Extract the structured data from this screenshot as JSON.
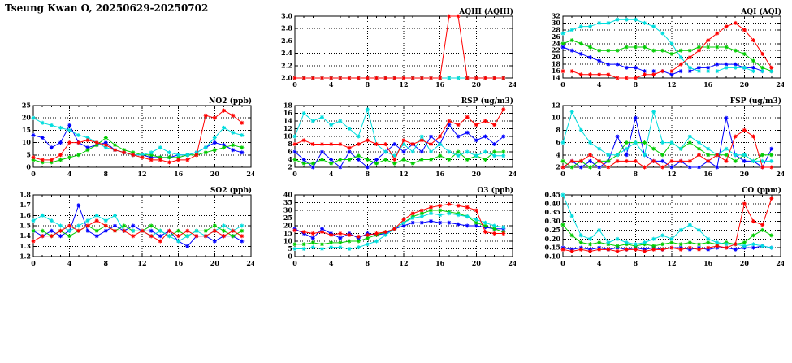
{
  "page_title": "Tseung Kwan O, 20250629-20250702",
  "series_colors": {
    "blue": "#0000ff",
    "green": "#00cc00",
    "cyan": "#00dddd",
    "red": "#ff0000"
  },
  "chart_data": [
    {
      "id": "aqhi",
      "type": "line",
      "title": "AQHI (AQHI)",
      "xlim": [
        0,
        24
      ],
      "xticks": [
        0,
        4,
        8,
        12,
        16,
        20,
        24
      ],
      "ylim": [
        2.0,
        3.0
      ],
      "yticks": [
        2.0,
        2.2,
        2.4,
        2.6,
        2.8,
        3.0
      ],
      "ydec": 1,
      "series": [
        {
          "name": "blue",
          "color": "#0000ff",
          "values": [
            2,
            2,
            2,
            2,
            2,
            2,
            2,
            2,
            2,
            2,
            2,
            2,
            2,
            2,
            2,
            2,
            2,
            2,
            2,
            2,
            2,
            2,
            2,
            2
          ]
        },
        {
          "name": "green",
          "color": "#00cc00",
          "values": [
            2,
            2,
            2,
            2,
            2,
            2,
            2,
            2,
            2,
            2,
            2,
            2,
            2,
            2,
            2,
            2,
            2,
            2,
            2,
            2,
            2,
            2,
            2,
            2
          ]
        },
        {
          "name": "cyan",
          "color": "#00dddd",
          "values": [
            2,
            2,
            2,
            2,
            2,
            2,
            2,
            2,
            2,
            2,
            2,
            2,
            2,
            2,
            2,
            2,
            2,
            2,
            2,
            2,
            2,
            2,
            2,
            2
          ]
        },
        {
          "name": "red",
          "color": "#ff0000",
          "values": [
            2,
            2,
            2,
            2,
            2,
            2,
            2,
            2,
            2,
            2,
            2,
            2,
            2,
            2,
            2,
            2,
            2,
            3,
            3,
            2,
            2,
            2,
            2,
            2
          ]
        }
      ]
    },
    {
      "id": "aqi",
      "type": "line",
      "title": "AQI (AQI)",
      "xlim": [
        0,
        24
      ],
      "xticks": [
        0,
        4,
        8,
        12,
        16,
        20,
        24
      ],
      "ylim": [
        14,
        32
      ],
      "yticks": [
        14,
        16,
        18,
        20,
        22,
        24,
        26,
        28,
        30,
        32
      ],
      "ydec": 0,
      "series": [
        {
          "name": "blue",
          "color": "#0000ff",
          "values": [
            23,
            22,
            21,
            20,
            19,
            18,
            18,
            17,
            17,
            16,
            16,
            16,
            15,
            16,
            16,
            17,
            17,
            18,
            18,
            18,
            17,
            17,
            16,
            16
          ]
        },
        {
          "name": "green",
          "color": "#00cc00",
          "values": [
            24,
            25,
            24,
            23,
            22,
            22,
            22,
            23,
            23,
            23,
            22,
            22,
            21,
            22,
            22,
            23,
            23,
            23,
            23,
            22,
            21,
            19,
            17,
            16
          ]
        },
        {
          "name": "cyan",
          "color": "#00dddd",
          "values": [
            27,
            28,
            29,
            29,
            30,
            30,
            31,
            31,
            31,
            30,
            29,
            27,
            24,
            20,
            17,
            16,
            16,
            16,
            17,
            17,
            17,
            16,
            16,
            16
          ]
        },
        {
          "name": "red",
          "color": "#ff0000",
          "values": [
            16,
            16,
            15,
            15,
            15,
            15,
            14,
            14,
            14,
            15,
            15,
            16,
            16,
            18,
            20,
            22,
            25,
            27,
            29,
            30,
            28,
            25,
            21,
            17
          ]
        }
      ]
    },
    {
      "id": "no2",
      "type": "line",
      "title": "NO2 (ppb)",
      "xlim": [
        0,
        24
      ],
      "xticks": [
        0,
        4,
        8,
        12,
        16,
        20,
        24
      ],
      "ylim": [
        0,
        25
      ],
      "yticks": [
        0,
        5,
        10,
        15,
        20,
        25
      ],
      "ydec": 0,
      "series": [
        {
          "name": "blue",
          "color": "#0000ff",
          "values": [
            13,
            12,
            8,
            10,
            17,
            10,
            8,
            9,
            10,
            7,
            6,
            5,
            5,
            4,
            4,
            4,
            5,
            5,
            6,
            8,
            10,
            9,
            7,
            6
          ]
        },
        {
          "name": "green",
          "color": "#00cc00",
          "values": [
            3,
            2,
            2,
            3,
            4,
            5,
            7,
            9,
            12,
            9,
            7,
            6,
            5,
            5,
            4,
            4,
            4,
            5,
            5,
            6,
            7,
            8,
            9,
            8
          ]
        },
        {
          "name": "cyan",
          "color": "#00dddd",
          "values": [
            20,
            18,
            17,
            16,
            15,
            13,
            12,
            10,
            8,
            7,
            6,
            5,
            5,
            6,
            8,
            6,
            5,
            5,
            6,
            8,
            12,
            16,
            14,
            13
          ]
        },
        {
          "name": "red",
          "color": "#ff0000",
          "values": [
            4,
            3,
            3,
            5,
            10,
            10,
            11,
            10,
            9,
            7,
            6,
            5,
            4,
            3,
            3,
            2,
            3,
            3,
            5,
            21,
            20,
            23,
            21,
            18
          ]
        }
      ]
    },
    {
      "id": "rsp",
      "type": "line",
      "title": "RSP (ug/m3)",
      "xlim": [
        0,
        24
      ],
      "xticks": [
        0,
        4,
        8,
        12,
        16,
        20,
        24
      ],
      "ylim": [
        2,
        18
      ],
      "yticks": [
        2,
        4,
        6,
        8,
        10,
        12,
        14,
        16,
        18
      ],
      "ydec": 0,
      "series": [
        {
          "name": "blue",
          "color": "#0000ff",
          "values": [
            6,
            4,
            2,
            6,
            4,
            2,
            6,
            4,
            2,
            4,
            6,
            8,
            6,
            8,
            6,
            10,
            8,
            13,
            10,
            11,
            9,
            10,
            8,
            10
          ]
        },
        {
          "name": "green",
          "color": "#00cc00",
          "values": [
            4,
            3,
            3,
            4,
            3,
            4,
            4,
            5,
            4,
            3,
            4,
            3,
            4,
            3,
            4,
            4,
            5,
            4,
            6,
            4,
            5,
            4,
            6,
            6
          ]
        },
        {
          "name": "cyan",
          "color": "#00dddd",
          "values": [
            10,
            16,
            14,
            15,
            13,
            14,
            12,
            10,
            17,
            8,
            6,
            5,
            8,
            6,
            10,
            6,
            8,
            6,
            5,
            6,
            5,
            6,
            5,
            5
          ]
        },
        {
          "name": "red",
          "color": "#ff0000",
          "values": [
            8,
            9,
            8,
            8,
            8,
            8,
            7,
            8,
            9,
            8,
            8,
            4,
            9,
            8,
            9,
            8,
            10,
            14,
            13,
            15,
            13,
            14,
            13,
            17
          ]
        }
      ]
    },
    {
      "id": "fsp",
      "type": "line",
      "title": "FSP (ug/m3)",
      "xlim": [
        0,
        24
      ],
      "xticks": [
        0,
        4,
        8,
        12,
        16,
        20,
        24
      ],
      "ylim": [
        2,
        12
      ],
      "yticks": [
        2,
        4,
        6,
        8,
        10,
        12
      ],
      "ydec": 0,
      "series": [
        {
          "name": "blue",
          "color": "#0000ff",
          "values": [
            2,
            3,
            2,
            3,
            2,
            3,
            7,
            4,
            10,
            4,
            3,
            3,
            2,
            3,
            2,
            2,
            3,
            2,
            10,
            4,
            3,
            3,
            2,
            5
          ]
        },
        {
          "name": "green",
          "color": "#00cc00",
          "values": [
            3,
            2,
            3,
            2,
            3,
            3,
            4,
            6,
            6,
            6,
            5,
            4,
            6,
            5,
            6,
            5,
            4,
            4,
            4,
            3,
            4,
            3,
            4,
            4
          ]
        },
        {
          "name": "cyan",
          "color": "#00dddd",
          "values": [
            6,
            11,
            8,
            6,
            5,
            4,
            4,
            5,
            6,
            4,
            11,
            6,
            6,
            5,
            7,
            6,
            5,
            4,
            5,
            4,
            4,
            3,
            3,
            3
          ]
        },
        {
          "name": "red",
          "color": "#ff0000",
          "values": [
            2,
            3,
            3,
            4,
            3,
            2,
            3,
            3,
            3,
            2,
            3,
            2,
            3,
            3,
            3,
            4,
            3,
            4,
            3,
            7,
            8,
            7,
            2,
            2
          ]
        }
      ]
    },
    {
      "id": "so2",
      "type": "line",
      "title": "SO2 (ppb)",
      "xlim": [
        0,
        24
      ],
      "xticks": [
        0,
        4,
        8,
        12,
        16,
        20,
        24
      ],
      "ylim": [
        1.2,
        1.8
      ],
      "yticks": [
        1.2,
        1.3,
        1.4,
        1.5,
        1.6,
        1.7,
        1.8
      ],
      "ydec": 1,
      "series": [
        {
          "name": "blue",
          "color": "#0000ff",
          "values": [
            1.45,
            1.4,
            1.45,
            1.4,
            1.45,
            1.7,
            1.45,
            1.4,
            1.45,
            1.5,
            1.45,
            1.5,
            1.45,
            1.45,
            1.4,
            1.45,
            1.35,
            1.3,
            1.4,
            1.4,
            1.35,
            1.4,
            1.4,
            1.35
          ]
        },
        {
          "name": "green",
          "color": "#00cc00",
          "values": [
            1.45,
            1.45,
            1.4,
            1.45,
            1.4,
            1.45,
            1.5,
            1.45,
            1.5,
            1.45,
            1.5,
            1.45,
            1.45,
            1.5,
            1.45,
            1.4,
            1.45,
            1.4,
            1.45,
            1.45,
            1.5,
            1.45,
            1.4,
            1.45
          ]
        },
        {
          "name": "cyan",
          "color": "#00dddd",
          "values": [
            1.55,
            1.6,
            1.55,
            1.5,
            1.45,
            1.5,
            1.55,
            1.6,
            1.55,
            1.6,
            1.45,
            1.45,
            1.45,
            1.4,
            1.45,
            1.4,
            1.35,
            1.4,
            1.45,
            1.4,
            1.45,
            1.5,
            1.45,
            1.5
          ]
        },
        {
          "name": "red",
          "color": "#ff0000",
          "values": [
            1.35,
            1.4,
            1.4,
            1.45,
            1.5,
            1.45,
            1.5,
            1.55,
            1.5,
            1.45,
            1.45,
            1.4,
            1.45,
            1.4,
            1.35,
            1.45,
            1.4,
            1.45,
            1.4,
            1.4,
            1.45,
            1.4,
            1.45,
            1.4
          ]
        }
      ]
    },
    {
      "id": "o3",
      "type": "line",
      "title": "O3 (ppb)",
      "xlim": [
        0,
        24
      ],
      "xticks": [
        0,
        4,
        8,
        12,
        16,
        20,
        24
      ],
      "ylim": [
        0,
        40
      ],
      "yticks": [
        0,
        5,
        10,
        15,
        20,
        25,
        30,
        35,
        40
      ],
      "ydec": 0,
      "series": [
        {
          "name": "blue",
          "color": "#0000ff",
          "values": [
            18,
            15,
            12,
            18,
            15,
            12,
            15,
            12,
            15,
            14,
            15,
            18,
            20,
            22,
            22,
            23,
            22,
            22,
            21,
            20,
            20,
            19,
            18,
            18
          ]
        },
        {
          "name": "green",
          "color": "#00cc00",
          "values": [
            8,
            8,
            9,
            8,
            9,
            9,
            10,
            10,
            12,
            14,
            16,
            18,
            22,
            26,
            28,
            30,
            30,
            29,
            28,
            26,
            22,
            20,
            18,
            16
          ]
        },
        {
          "name": "cyan",
          "color": "#00dddd",
          "values": [
            5,
            5,
            6,
            5,
            6,
            6,
            5,
            6,
            8,
            10,
            14,
            18,
            22,
            25,
            26,
            28,
            27,
            28,
            27,
            26,
            24,
            22,
            20,
            19
          ]
        },
        {
          "name": "red",
          "color": "#ff0000",
          "values": [
            17,
            16,
            15,
            16,
            14,
            15,
            14,
            13,
            14,
            15,
            16,
            18,
            24,
            28,
            30,
            32,
            33,
            34,
            33,
            32,
            30,
            16,
            15,
            15
          ]
        }
      ]
    },
    {
      "id": "co",
      "type": "line",
      "title": "CO (ppm)",
      "xlim": [
        0,
        24
      ],
      "xticks": [
        0,
        4,
        8,
        12,
        16,
        20,
        24
      ],
      "ylim": [
        0.1,
        0.45
      ],
      "yticks": [
        0.1,
        0.15,
        0.2,
        0.25,
        0.3,
        0.35,
        0.4,
        0.45
      ],
      "ydec": 2,
      "series": [
        {
          "name": "blue",
          "color": "#0000ff",
          "values": [
            0.15,
            0.14,
            0.15,
            0.14,
            0.15,
            0.14,
            0.15,
            0.14,
            0.15,
            0.14,
            0.15,
            0.14,
            0.15,
            0.15,
            0.14,
            0.15,
            0.14,
            0.15,
            0.15,
            0.14,
            0.15,
            0.15,
            0.16,
            0.15
          ]
        },
        {
          "name": "green",
          "color": "#00cc00",
          "values": [
            0.28,
            0.22,
            0.18,
            0.17,
            0.18,
            0.17,
            0.16,
            0.17,
            0.16,
            0.17,
            0.16,
            0.17,
            0.18,
            0.17,
            0.18,
            0.17,
            0.18,
            0.17,
            0.18,
            0.17,
            0.18,
            0.22,
            0.25,
            0.22
          ]
        },
        {
          "name": "cyan",
          "color": "#00dddd",
          "values": [
            0.45,
            0.33,
            0.22,
            0.2,
            0.25,
            0.18,
            0.2,
            0.18,
            0.17,
            0.18,
            0.2,
            0.22,
            0.2,
            0.25,
            0.28,
            0.25,
            0.2,
            0.18,
            0.17,
            0.17,
            0.16,
            0.17,
            0.16,
            0.15
          ]
        },
        {
          "name": "red",
          "color": "#ff0000",
          "values": [
            0.14,
            0.13,
            0.14,
            0.13,
            0.14,
            0.14,
            0.13,
            0.14,
            0.14,
            0.13,
            0.14,
            0.14,
            0.15,
            0.14,
            0.15,
            0.14,
            0.15,
            0.16,
            0.15,
            0.17,
            0.4,
            0.3,
            0.28,
            0.43
          ]
        }
      ]
    }
  ]
}
